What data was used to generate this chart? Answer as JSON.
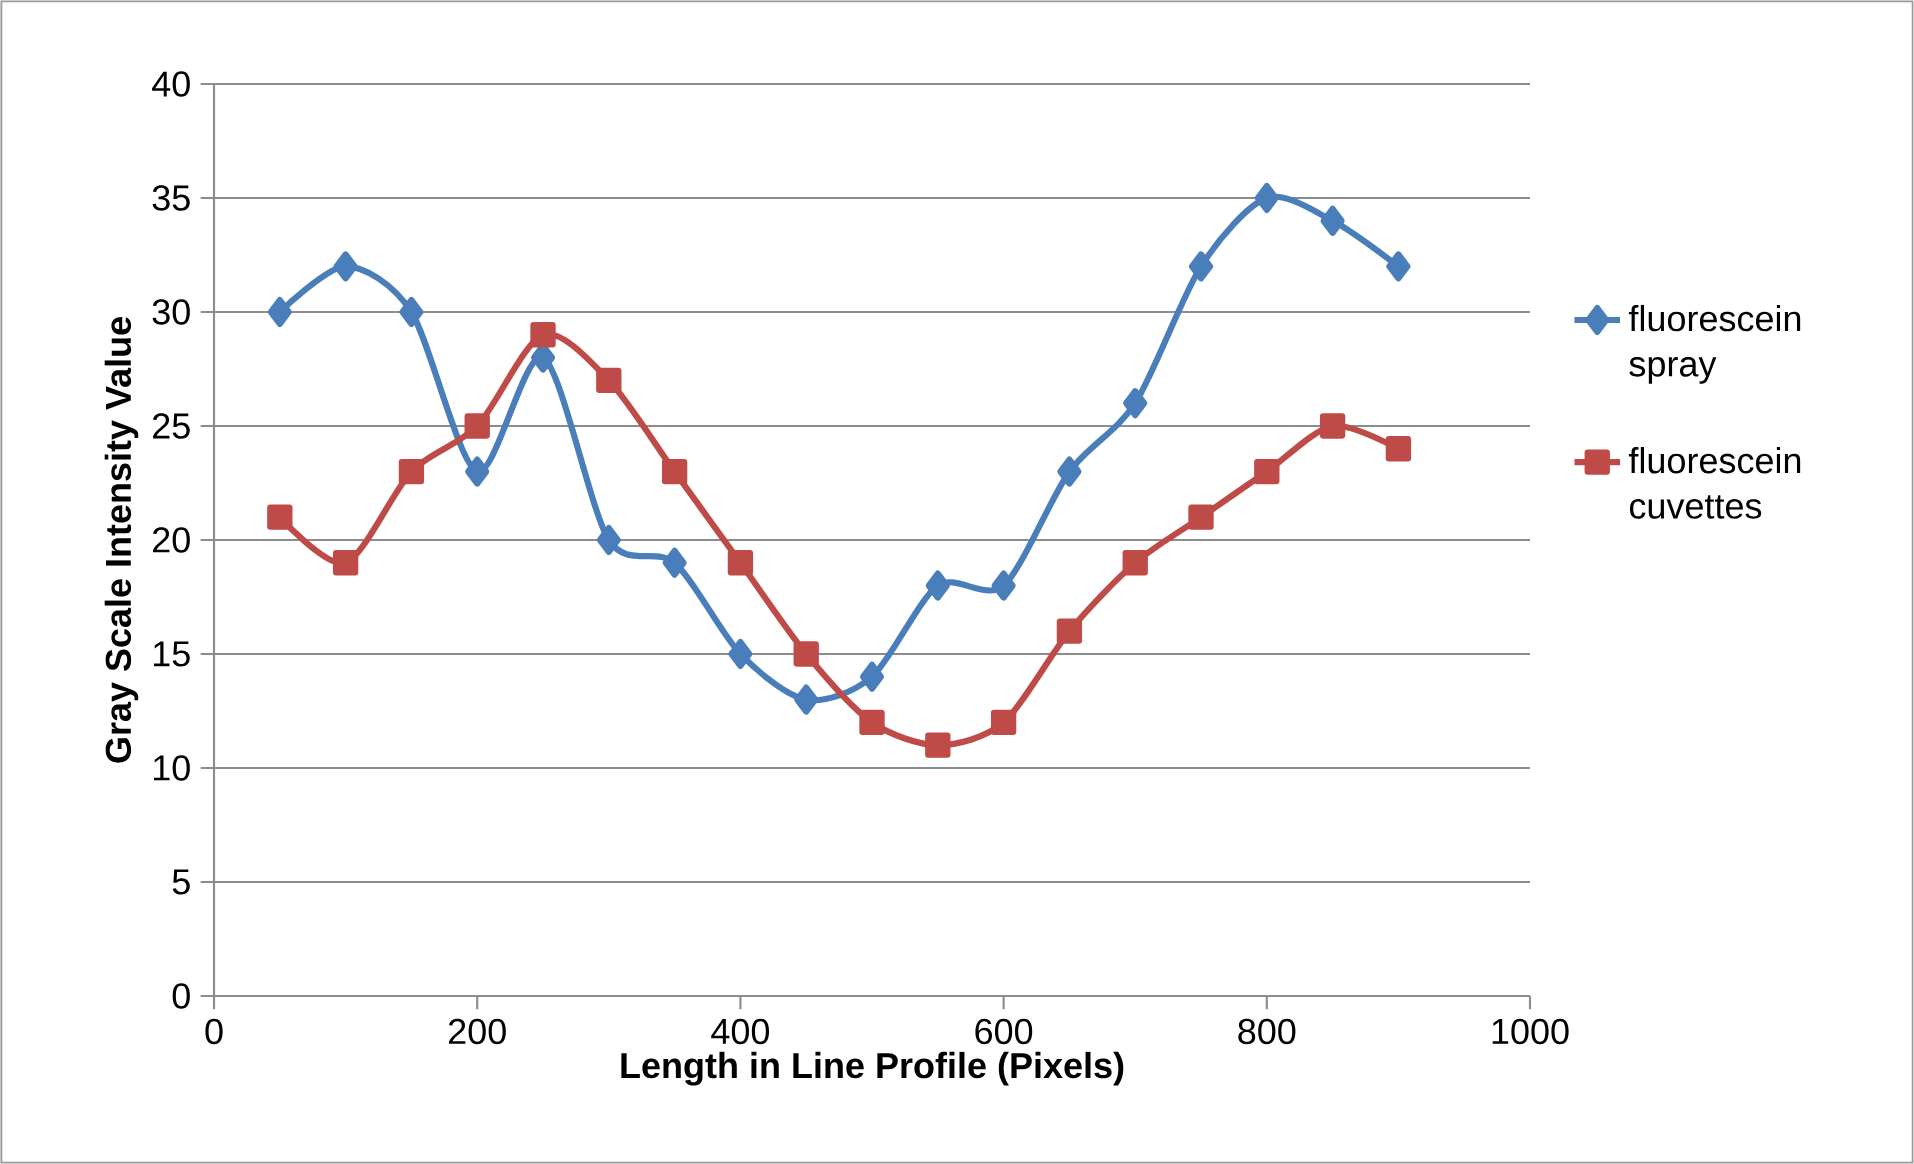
{
  "chart_data": {
    "type": "line",
    "xlabel": "Length in Line Profile (Pixels)",
    "ylabel": "Gray Scale Intensity Value",
    "x": [
      50,
      100,
      150,
      200,
      250,
      300,
      350,
      400,
      450,
      500,
      550,
      600,
      650,
      700,
      750,
      800,
      850,
      900
    ],
    "series": [
      {
        "name": "fluorescein spray",
        "color": "#4a7ebb",
        "marker": "diamond",
        "values": [
          30,
          32,
          30,
          23,
          28,
          20,
          19,
          15,
          13,
          14,
          18,
          18,
          23,
          26,
          32,
          35,
          34,
          32
        ]
      },
      {
        "name": "fluorescein cuvettes",
        "color": "#be4b48",
        "marker": "square",
        "values": [
          21,
          19,
          23,
          25,
          29,
          27,
          23,
          19,
          15,
          12,
          11,
          12,
          16,
          19,
          21,
          23,
          25,
          24
        ]
      }
    ],
    "xlim": [
      0,
      1000
    ],
    "xticks": [
      0,
      200,
      400,
      600,
      800,
      1000
    ],
    "ylim": [
      0,
      40
    ],
    "yticks": [
      0,
      5,
      10,
      15,
      20,
      25,
      30,
      35,
      40
    ],
    "grid": "y",
    "legend": "right",
    "line_style": "solid"
  }
}
